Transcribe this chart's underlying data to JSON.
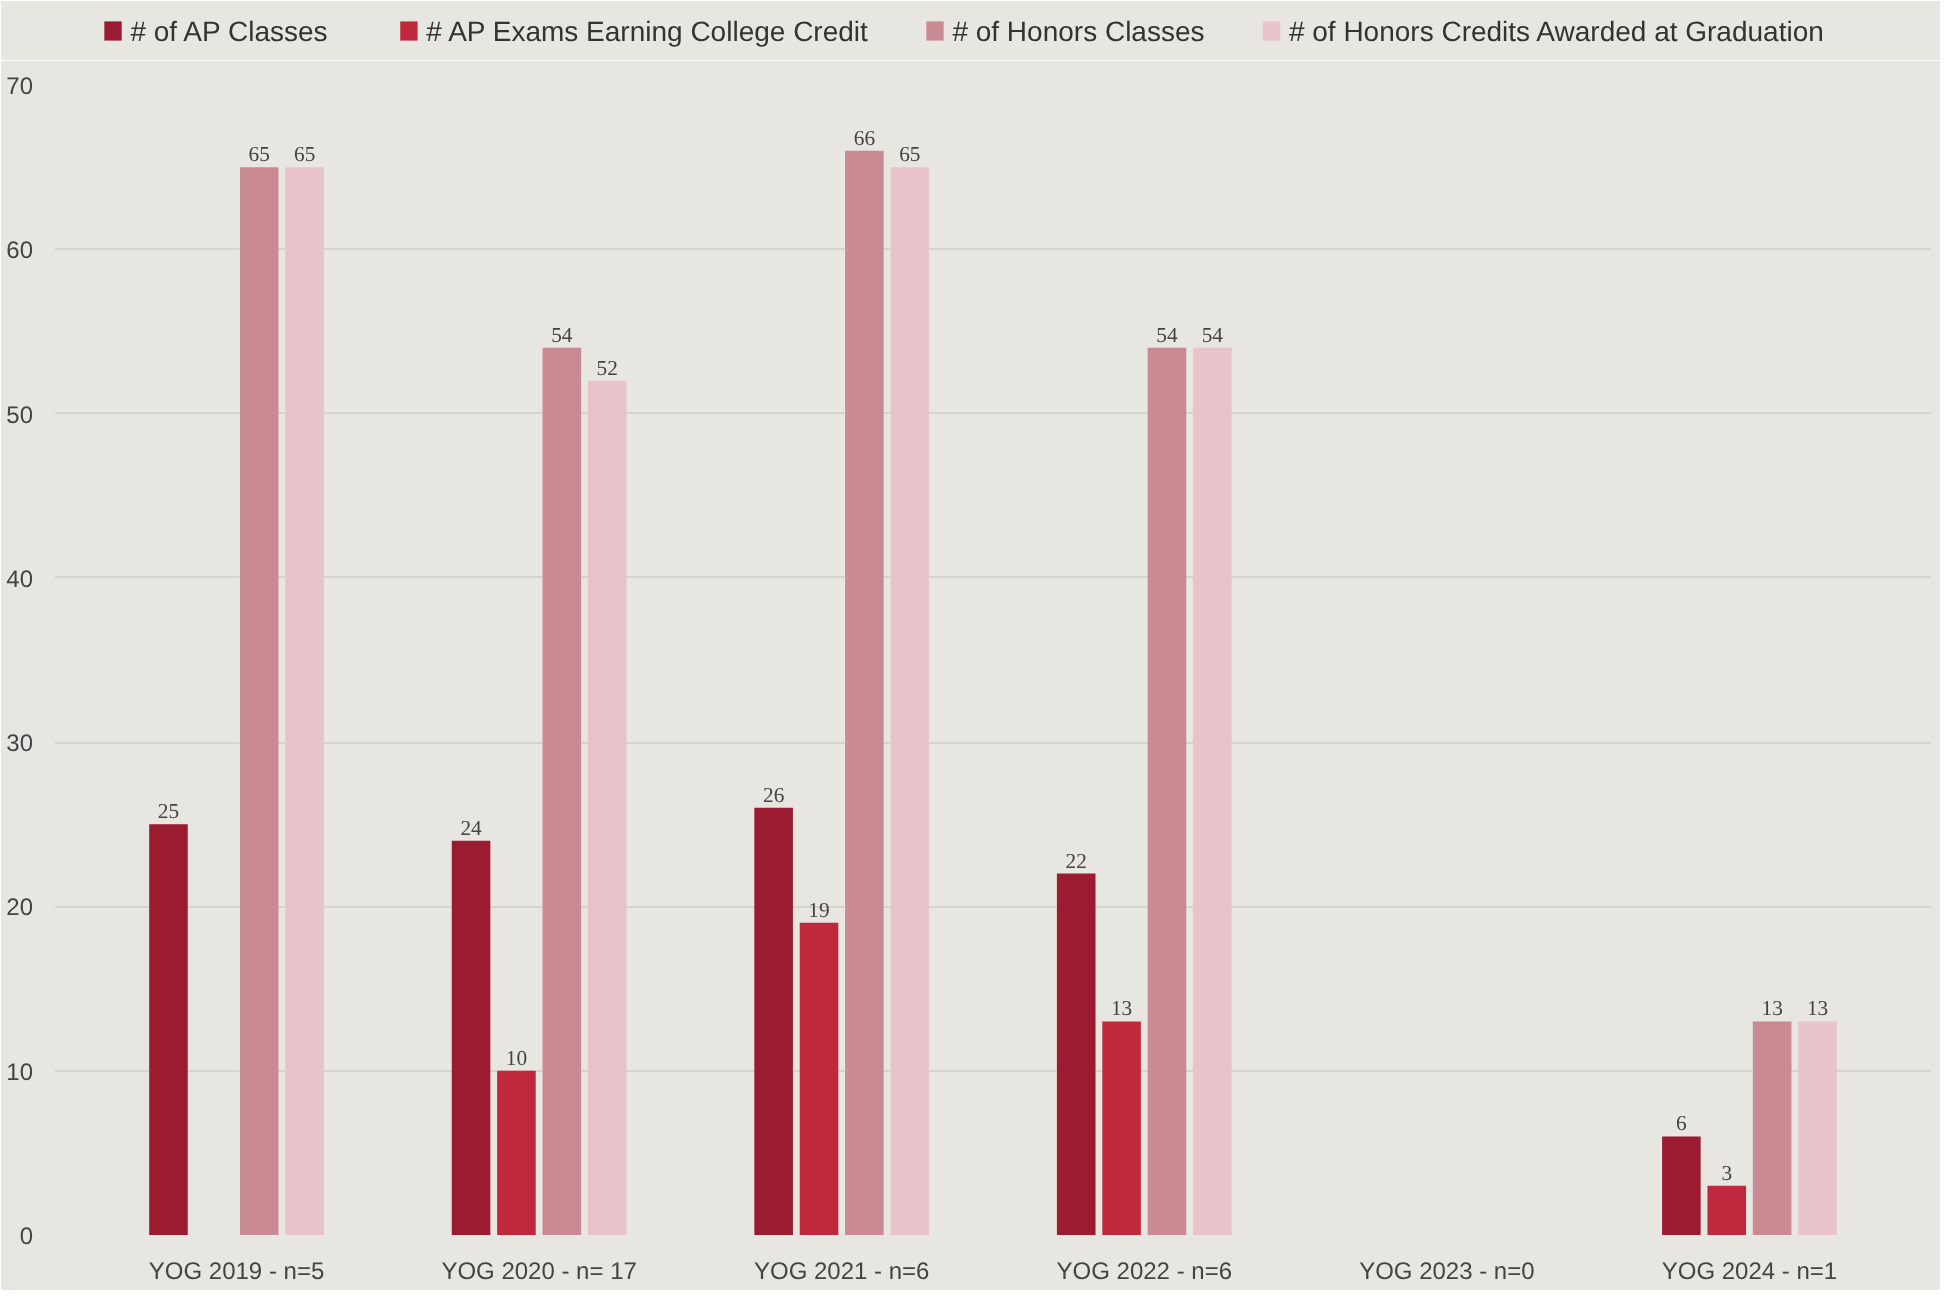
{
  "chart_data": {
    "type": "bar",
    "categories": [
      "YOG 2019 - n=5",
      "YOG 2020 - n= 17",
      "YOG 2021 - n=6",
      "YOG 2022 - n=6",
      "YOG 2023 - n=0",
      "YOG 2024 - n=1"
    ],
    "series": [
      {
        "name": "#  of  AP Classes",
        "color": "#9b1b30",
        "values": [
          25,
          24,
          26,
          22,
          null,
          6
        ]
      },
      {
        "name": "#  AP Exams Earning College Credit",
        "color": "#c0283e",
        "values": [
          null,
          10,
          19,
          13,
          null,
          3
        ]
      },
      {
        "name": "# of  Honors Classes",
        "color": "#c98a94",
        "values": [
          65,
          54,
          66,
          54,
          null,
          13
        ]
      },
      {
        "name": "# of Honors Credits Awarded at Graduation",
        "color": "#e8c4ca",
        "values": [
          65,
          52,
          65,
          54,
          null,
          13
        ]
      }
    ],
    "ylim": [
      0,
      70
    ],
    "yticks": [
      0,
      10,
      20,
      30,
      40,
      50,
      60,
      70
    ],
    "grid": "y",
    "legend": "top",
    "data_labels": true
  }
}
